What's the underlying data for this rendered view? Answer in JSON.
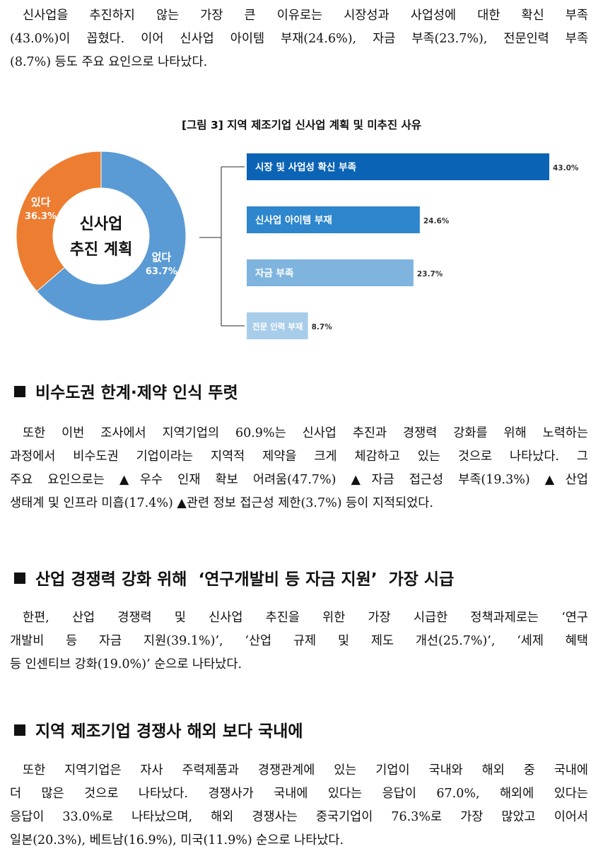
{
  "intro": {
    "lines": [
      "신사업을 추진하지 않는 가장 큰 이유로는 시장성과 사업성에 대한 확신 부족",
      "(43.0%)이 꼽혔다. 이어 신사업 아이템 부재(24.6%), 자금 부족(23.7%), 전문인력 부족",
      "(8.7%) 등도 주요 요인으로 나타났다."
    ]
  },
  "figure": {
    "title": "[그림 3] 지역 제조기업 신사업 계획 및 미추진 사유"
  },
  "chart_data": [
    {
      "type": "pie",
      "center_label": [
        "신사업",
        "추진 계획"
      ],
      "slices": [
        {
          "label": "없다",
          "value": 63.7,
          "value_label": "63.7%",
          "color": "#5b9bd5"
        },
        {
          "label": "있다",
          "value": 36.3,
          "value_label": "36.3%",
          "color": "#ed7d31"
        }
      ]
    },
    {
      "type": "bar",
      "orientation": "horizontal",
      "categories": [
        "시장 및 사업성 확신 부족",
        "신사업 아이템 부재",
        "자금 부족",
        "전문 인력 부재"
      ],
      "values": [
        43.0,
        24.6,
        23.7,
        8.7
      ],
      "value_labels": [
        "43.0%",
        "24.6%",
        "23.7%",
        "8.7%"
      ],
      "colors": [
        "#0b63b5",
        "#2e86cc",
        "#7fb4df",
        "#a8cdeb"
      ]
    }
  ],
  "sections": [
    {
      "heading": "비수도권 한계·제약 인식 뚜렷",
      "lines": [
        "또한 이번 조사에서 지역기업의 60.9%는 신사업 추진과 경쟁력 강화를 위해 노력하는",
        "과정에서 비수도권 기업이라는 지역적 제약을 크게 체감하고 있는 것으로 나타났다. 그",
        "주요 요인으로는 ▲우수 인재 확보 어려움(47.7%) ▲자금 접근성 부족(19.3%) ▲산업",
        "생태계 및 인프라 미흡(17.4%) ▲관련 정보 접근성 제한(3.7%) 등이 지적되었다."
      ]
    },
    {
      "heading": "산업 경쟁력 강화 위해  ‘연구개발비 등 자금 지원’  가장 시급",
      "lines": [
        "한편, 산업 경쟁력 및 신사업 추진을 위한 가장 시급한 정책과제로는 ‘연구",
        "개발비 등 자금 지원(39.1%)’, ‘산업 규제 및 제도 개선(25.7%)’, ‘세제 혜택",
        "등 인센티브 강화(19.0%)’ 순으로 나타났다."
      ]
    },
    {
      "heading": "지역 제조기업 경쟁사 해외 보다 국내에",
      "lines": [
        "또한 지역기업은 자사 주력제품과 경쟁관계에 있는 기업이 국내와 해외 중 국내에",
        "더 많은 것으로 나타났다. 경쟁사가 국내에 있다는 응답이 67.0%, 해외에 있다는",
        "응답이 33.0%로 나타났으며, 해외 경쟁사는 중국기업이 76.3%로 가장 많았고 이어서",
        "일본(20.3%), 베트남(16.9%), 미국(11.9%) 순으로 나타났다."
      ]
    }
  ]
}
